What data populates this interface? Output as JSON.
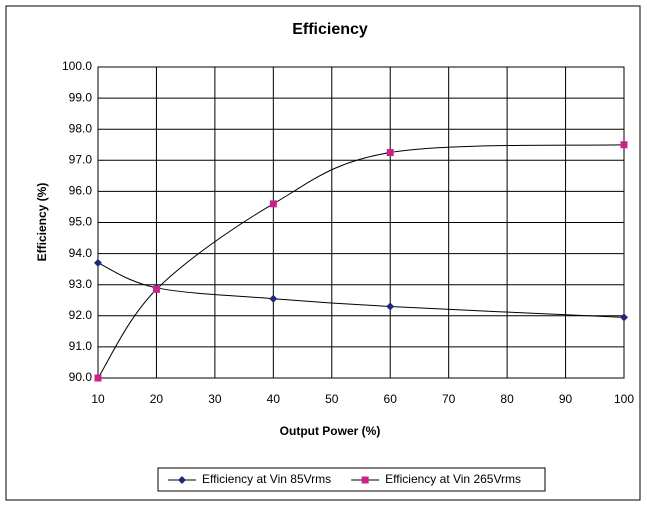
{
  "chart_data": {
    "type": "line",
    "title": "Efficiency",
    "xlabel": "Output Power (%)",
    "ylabel": "Efficiency (%)",
    "xlim": [
      10,
      100
    ],
    "xticks": [
      10,
      20,
      30,
      40,
      50,
      60,
      70,
      80,
      90,
      100
    ],
    "ylim": [
      90,
      100
    ],
    "yticks": [
      {
        "value": 90,
        "label": "90.0"
      },
      {
        "value": 91,
        "label": "91.0"
      },
      {
        "value": 92,
        "label": "92.0"
      },
      {
        "value": 93,
        "label": "93.0"
      },
      {
        "value": 94,
        "label": "94.0"
      },
      {
        "value": 95,
        "label": "95.0"
      },
      {
        "value": 96,
        "label": "96.0"
      },
      {
        "value": 97,
        "label": "97.0"
      },
      {
        "value": 98,
        "label": "98.0"
      },
      {
        "value": 99,
        "label": "99.0"
      },
      {
        "value": 100,
        "label": "100.0"
      }
    ],
    "grid": true,
    "legend": "bottom",
    "series": [
      {
        "name": "Efficiency at Vin 85Vrms",
        "color": "#1f2a7a",
        "marker": "diamond",
        "x": [
          10,
          20,
          40,
          60,
          100
        ],
        "values": [
          93.7,
          92.9,
          92.55,
          92.3,
          91.95
        ]
      },
      {
        "name": "Efficiency at Vin 265Vrms",
        "color": "#cc2288",
        "marker": "square",
        "x": [
          10,
          20,
          40,
          60,
          100
        ],
        "values": [
          90.0,
          92.85,
          95.6,
          97.25,
          97.5
        ]
      }
    ]
  }
}
